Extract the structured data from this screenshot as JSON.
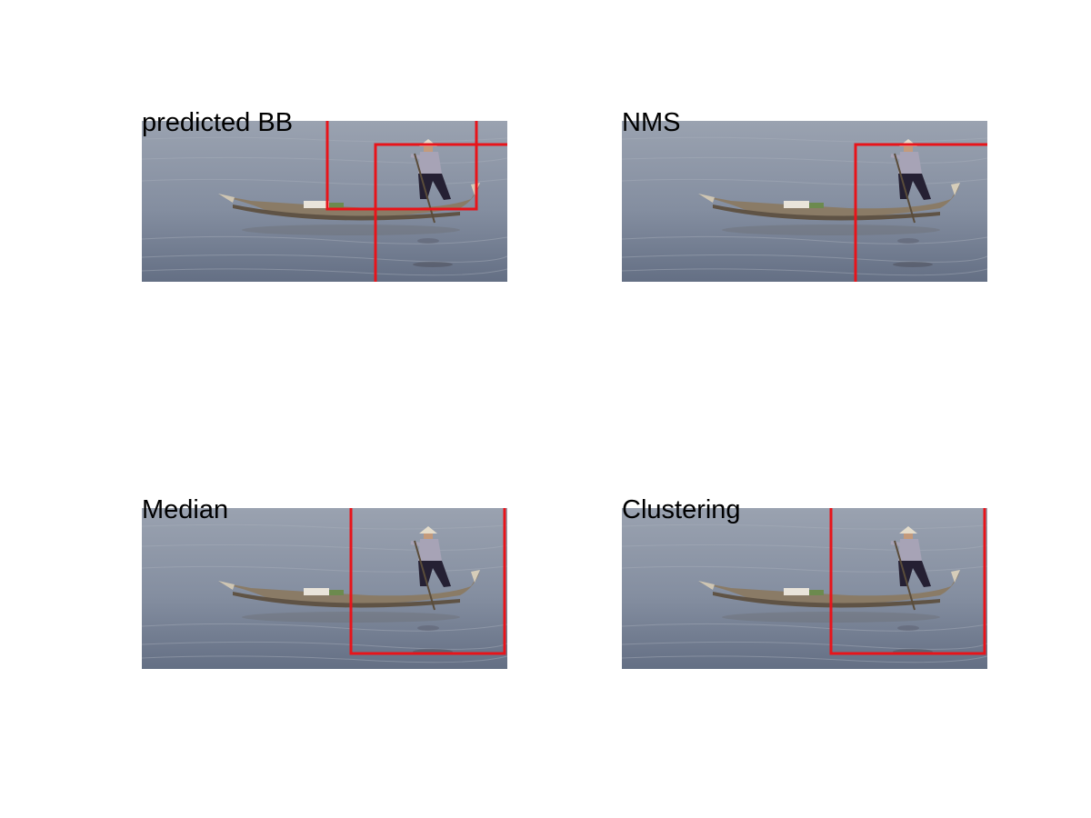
{
  "panels": [
    {
      "title": "predicted BB",
      "box_count": 2
    },
    {
      "title": "NMS",
      "box_count": 1
    },
    {
      "title": "Median",
      "box_count": 1
    },
    {
      "title": "Clustering",
      "box_count": 1
    }
  ],
  "colors": {
    "box": "#e8141a",
    "water_top": "#8f98a8",
    "water_bottom": "#6a7488",
    "boat": "#8a7a64",
    "figure_shirt": "#a7a3b6",
    "figure_pants": "#252033",
    "hat": "#e4dccb"
  },
  "scene": "man-standing-on-wooden-boat-on-water"
}
